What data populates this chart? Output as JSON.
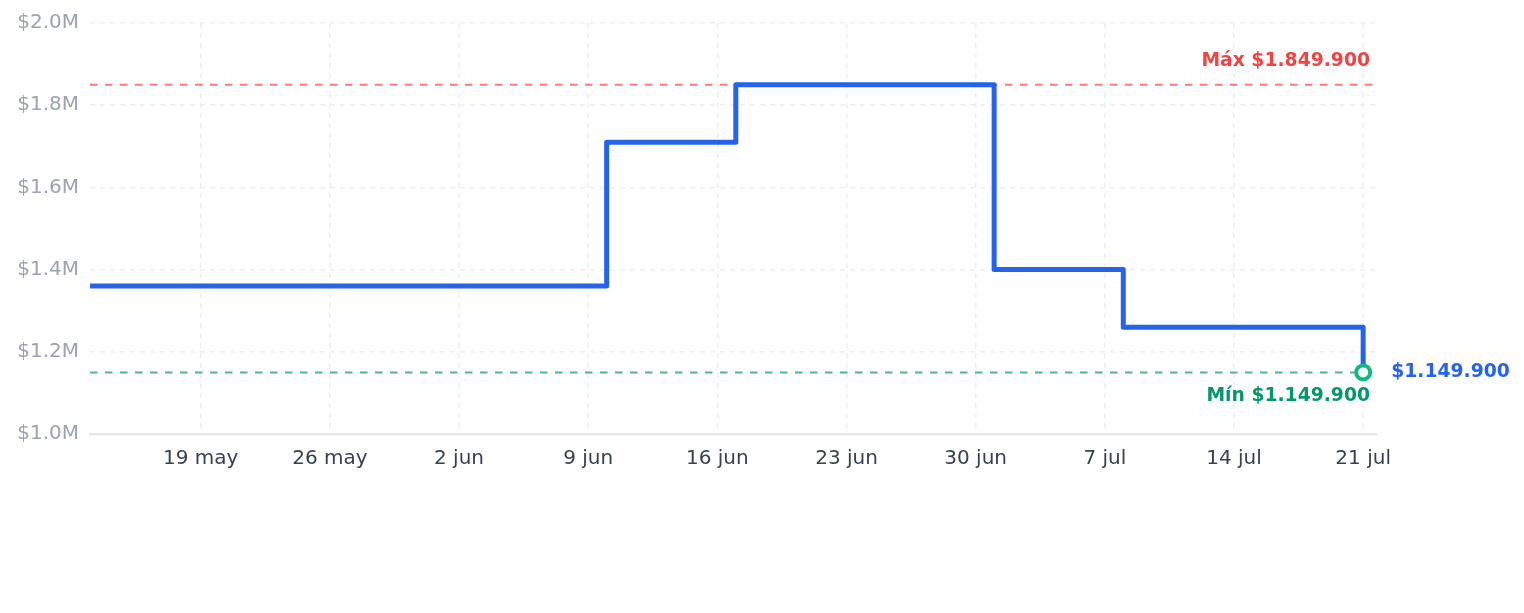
{
  "chart_data": {
    "type": "step",
    "x": [
      "--05-13",
      "--06-10",
      "--06-17",
      "--07-01",
      "--07-08",
      "--07-21"
    ],
    "series": [
      {
        "color": "#2563eb",
        "values": [
          1360000,
          1710000,
          1849900,
          1400000,
          1260000,
          1149900
        ]
      },
      {
        "type": "scatter",
        "x": [
          "--07-21"
        ],
        "color": "#10b981",
        "marker": "circle",
        "values": [
          1149900
        ]
      }
    ],
    "xlim": [
      "--05-13",
      "--07-21T18:00"
    ],
    "xticks": [
      {
        "value": "--05-19",
        "label": "19 may"
      },
      {
        "value": "--05-26",
        "label": "26 may"
      },
      {
        "value": "--06-02",
        "label": "2 jun"
      },
      {
        "value": "--06-09",
        "label": "9 jun"
      },
      {
        "value": "--06-16",
        "label": "16 jun"
      },
      {
        "value": "--06-23",
        "label": "23 jun"
      },
      {
        "value": "--06-30",
        "label": "30 jun"
      },
      {
        "value": "--07-07",
        "label": "7 jul"
      },
      {
        "value": "--07-14",
        "label": "14 jul"
      },
      {
        "value": "--07-21",
        "label": "21 jul"
      }
    ],
    "ylim": [
      1000000,
      2000000
    ],
    "yticks": [
      {
        "value": 1000000,
        "label": "$1.0M"
      },
      {
        "value": 1200000,
        "label": "$1.2M"
      },
      {
        "value": 1400000,
        "label": "$1.4M"
      },
      {
        "value": 1600000,
        "label": "$1.6M"
      },
      {
        "value": 1800000,
        "label": "$1.8M"
      },
      {
        "value": 2000000,
        "label": "$2.0M"
      }
    ],
    "grid": true,
    "ref_lines": [
      {
        "axis": "y",
        "value": 1849900,
        "label": "Máx $1.849.900",
        "color": "#ef4444",
        "line_style": "dashed"
      },
      {
        "axis": "y",
        "value": 1149900,
        "label": "Mín $1.149.900",
        "color": "#059669",
        "line_style": "dashed"
      }
    ],
    "annotations": [
      {
        "text": "$1.149.900",
        "x": "--07-21",
        "y": 1149900
      }
    ]
  }
}
